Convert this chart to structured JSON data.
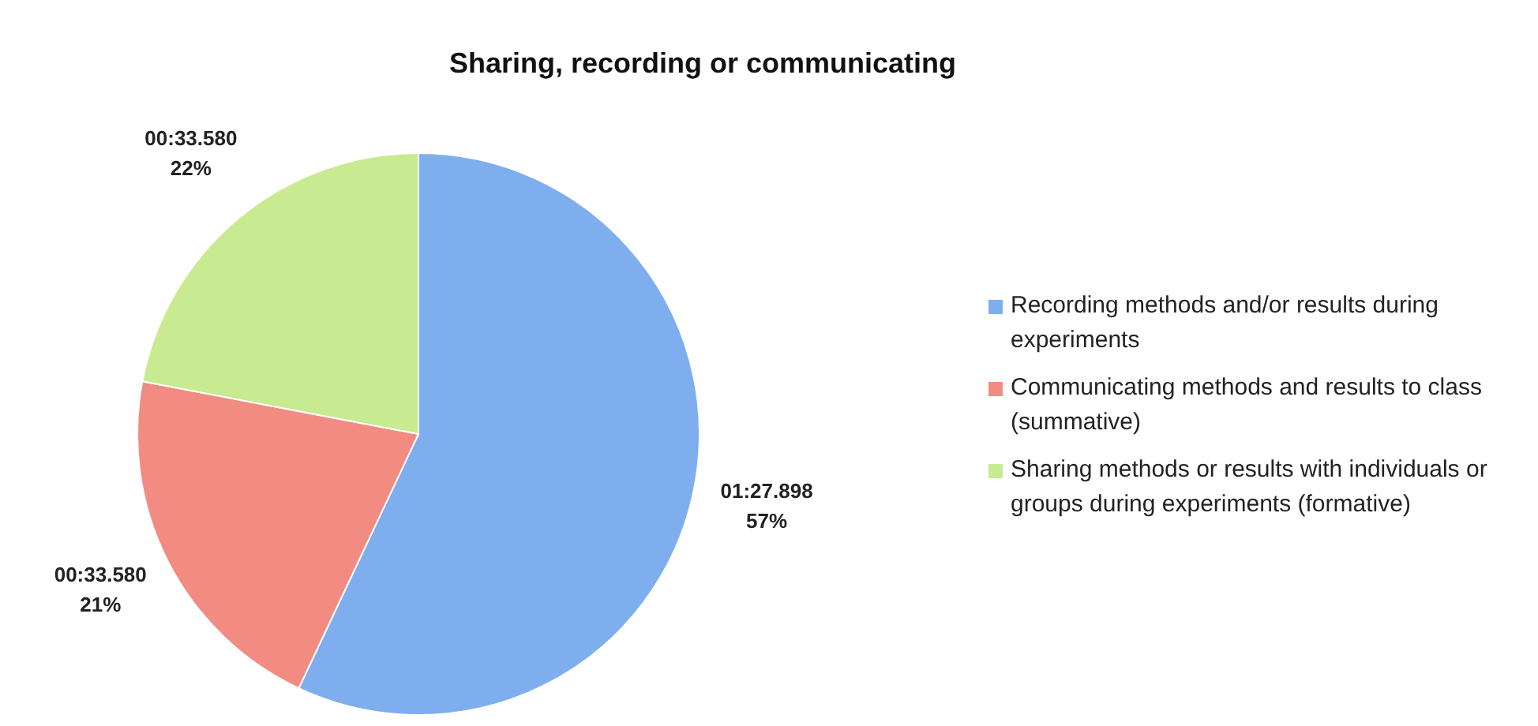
{
  "chart_data": {
    "type": "pie",
    "title": "Sharing, recording or communicating",
    "categories": [
      "Recording methods and/or results during experiments",
      "Communicating methods and results to class (summative)",
      "Sharing methods or results with individuals or groups during experiments (formative)"
    ],
    "values": [
      57,
      21,
      22
    ],
    "value_labels": [
      "01:27.898\n57%",
      "00:33.580\n21%",
      "00:33.580\n22%"
    ],
    "colors": [
      "#7eaeee",
      "#f28b82",
      "#c8ea90"
    ],
    "legend": "right"
  }
}
